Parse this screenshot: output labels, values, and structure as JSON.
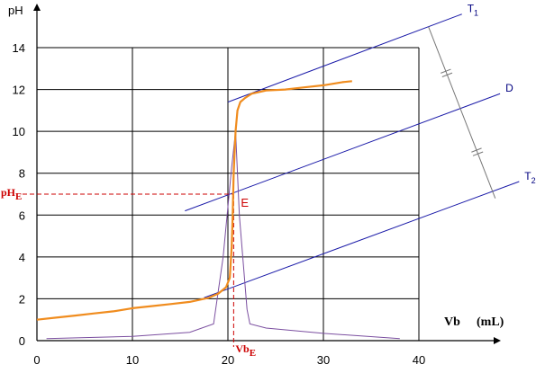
{
  "chart_data": {
    "type": "line",
    "title": "",
    "ylabel": "pH",
    "xlabel_main": "Vb",
    "xlabel_unit": "(mL)",
    "xlim": [
      0,
      40
    ],
    "ylim": [
      0,
      14
    ],
    "x_ticks": [
      0,
      10,
      20,
      30,
      40
    ],
    "y_ticks": [
      0,
      2,
      4,
      6,
      8,
      10,
      12,
      14
    ],
    "grid": true,
    "colors": {
      "ph_curve": "#f08c1e",
      "derivative": "#7b4fa0",
      "tangents": "#1a1aa8",
      "marker": "#cc0000"
    },
    "series": [
      {
        "key": "ph",
        "points": [
          [
            0,
            1.0
          ],
          [
            2,
            1.1
          ],
          [
            4,
            1.2
          ],
          [
            6,
            1.3
          ],
          [
            8,
            1.4
          ],
          [
            10,
            1.55
          ],
          [
            12,
            1.65
          ],
          [
            14,
            1.75
          ],
          [
            16,
            1.85
          ],
          [
            18,
            2.05
          ],
          [
            19,
            2.25
          ],
          [
            19.8,
            2.55
          ],
          [
            20.2,
            3.0
          ],
          [
            20.4,
            4.5
          ],
          [
            20.5,
            6.0
          ],
          [
            20.6,
            8.0
          ],
          [
            20.8,
            10.0
          ],
          [
            21.0,
            11.0
          ],
          [
            21.3,
            11.4
          ],
          [
            21.8,
            11.6
          ],
          [
            22.5,
            11.8
          ],
          [
            24,
            11.95
          ],
          [
            26,
            12.0
          ],
          [
            28,
            12.1
          ],
          [
            30,
            12.2
          ],
          [
            32,
            12.35
          ],
          [
            33,
            12.4
          ]
        ]
      },
      {
        "key": "dpH_dVb",
        "points": [
          [
            1,
            0.1
          ],
          [
            10,
            0.2
          ],
          [
            16,
            0.4
          ],
          [
            18.5,
            0.8
          ],
          [
            19.5,
            4.0
          ],
          [
            20.4,
            8.3
          ],
          [
            20.8,
            10.0
          ],
          [
            21.2,
            6.0
          ],
          [
            22.0,
            1.5
          ],
          [
            22.3,
            0.8
          ],
          [
            24,
            0.6
          ],
          [
            30,
            0.35
          ],
          [
            38,
            0.1
          ]
        ]
      }
    ],
    "tangent_lines": [
      {
        "name": "T",
        "sub": "1",
        "from": [
          20,
          11.4
        ],
        "to": [
          44.5,
          15.6
        ]
      },
      {
        "name": "D",
        "sub": "",
        "from": [
          15.5,
          6.2
        ],
        "to": [
          48.5,
          11.8
        ]
      },
      {
        "name": "T",
        "sub": "2",
        "from": [
          17.5,
          2.05
        ],
        "to": [
          50.5,
          7.6
        ]
      }
    ],
    "perpendicular": {
      "from": [
        41,
        15.0
      ],
      "to": [
        48,
        6.8
      ]
    },
    "equivalence_point": {
      "label": "E",
      "x": 20.6,
      "y": 7.0,
      "x_label": "Vb",
      "x_label_sub": "E",
      "y_label": "pH",
      "y_label_sub": "E"
    }
  }
}
